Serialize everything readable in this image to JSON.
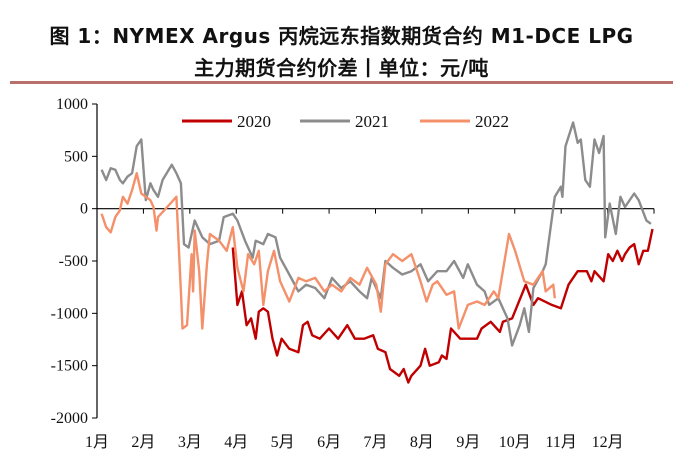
{
  "title": {
    "line1": "图 1：NYMEX Argus 丙烷远东指数期货合约 M1-DCE LPG",
    "line2": "主力期货合约价差丨单位：元/吨"
  },
  "chart_data": {
    "type": "line",
    "title": "图 1：NYMEX Argus 丙烷远东指数期货合约 M1-DCE LPG 主力期货合约价差丨单位：元/吨",
    "xlabel": "",
    "ylabel": "",
    "ylim": [
      -2000,
      1000
    ],
    "yticks": [
      "1000",
      "500",
      "0",
      "-500",
      "-1000",
      "-1500",
      "-2000"
    ],
    "xticks": [
      "1月",
      "2月",
      "3月",
      "4月",
      "5月",
      "6月",
      "7月",
      "8月",
      "9月",
      "10月",
      "11月",
      "12月"
    ],
    "grid": false,
    "legend": "top",
    "series": [
      {
        "name": "2020",
        "color": "#c00000",
        "points": [
          [
            "03-31",
            -371
          ],
          [
            "04-03",
            -919
          ],
          [
            "04-06",
            -790
          ],
          [
            "04-09",
            -1113
          ],
          [
            "04-12",
            -1048
          ],
          [
            "04-15",
            -1242
          ],
          [
            "04-17",
            -984
          ],
          [
            "04-20",
            -952
          ],
          [
            "04-23",
            -984
          ],
          [
            "04-26",
            -1242
          ],
          [
            "04-29",
            -1403
          ],
          [
            "05-02",
            -1242
          ],
          [
            "05-07",
            -1339
          ],
          [
            "05-13",
            -1371
          ],
          [
            "05-16",
            -1113
          ],
          [
            "05-19",
            -1081
          ],
          [
            "05-22",
            -1210
          ],
          [
            "05-27",
            -1242
          ],
          [
            "06-02",
            -1145
          ],
          [
            "06-08",
            -1242
          ],
          [
            "06-14",
            -1113
          ],
          [
            "06-19",
            -1242
          ],
          [
            "06-25",
            -1242
          ],
          [
            "07-01",
            -1210
          ],
          [
            "07-04",
            -1339
          ],
          [
            "07-09",
            -1371
          ],
          [
            "07-12",
            -1532
          ],
          [
            "07-18",
            -1597
          ],
          [
            "07-21",
            -1532
          ],
          [
            "07-24",
            -1661
          ],
          [
            "07-26",
            -1597
          ],
          [
            "08-01",
            -1500
          ],
          [
            "08-04",
            -1339
          ],
          [
            "08-07",
            -1500
          ],
          [
            "08-13",
            -1468
          ],
          [
            "08-15",
            -1403
          ],
          [
            "08-18",
            -1435
          ],
          [
            "08-21",
            -1145
          ],
          [
            "08-27",
            -1242
          ],
          [
            "09-02",
            -1242
          ],
          [
            "09-07",
            -1242
          ],
          [
            "09-10",
            -1145
          ],
          [
            "09-16",
            -1081
          ],
          [
            "09-22",
            -1177
          ],
          [
            "09-24",
            -1081
          ],
          [
            "09-30",
            -1048
          ],
          [
            "10-09",
            -726
          ],
          [
            "10-14",
            -919
          ],
          [
            "10-17",
            -855
          ],
          [
            "10-26",
            -919
          ],
          [
            "11-01",
            -952
          ],
          [
            "11-06",
            -726
          ],
          [
            "11-12",
            -597
          ],
          [
            "11-18",
            -597
          ],
          [
            "11-21",
            -694
          ],
          [
            "11-23",
            -597
          ],
          [
            "11-29",
            -694
          ],
          [
            "12-02",
            -435
          ],
          [
            "12-05",
            -500
          ],
          [
            "12-08",
            -403
          ],
          [
            "12-11",
            -500
          ],
          [
            "12-13",
            -435
          ],
          [
            "12-16",
            -371
          ],
          [
            "12-19",
            -339
          ],
          [
            "12-22",
            -532
          ],
          [
            "12-25",
            -403
          ],
          [
            "12-28",
            -403
          ],
          [
            "12-31",
            -194
          ]
        ]
      },
      {
        "name": "2021",
        "color": "#8c8c8c",
        "points": [
          [
            "01-04",
            371
          ],
          [
            "01-07",
            274
          ],
          [
            "01-10",
            387
          ],
          [
            "01-13",
            371
          ],
          [
            "01-16",
            274
          ],
          [
            "01-18",
            242
          ],
          [
            "01-21",
            306
          ],
          [
            "01-24",
            339
          ],
          [
            "01-27",
            597
          ],
          [
            "01-30",
            661
          ],
          [
            "02-02",
            81
          ],
          [
            "02-05",
            242
          ],
          [
            "02-07",
            177
          ],
          [
            "02-10",
            113
          ],
          [
            "02-13",
            274
          ],
          [
            "02-19",
            419
          ],
          [
            "02-22",
            339
          ],
          [
            "02-25",
            242
          ],
          [
            "02-27",
            -339
          ],
          [
            "03-02",
            -371
          ],
          [
            "03-06",
            -113
          ],
          [
            "03-11",
            -274
          ],
          [
            "03-16",
            -339
          ],
          [
            "03-22",
            -306
          ],
          [
            "03-25",
            -81
          ],
          [
            "03-31",
            -48
          ],
          [
            "04-03",
            -113
          ],
          [
            "04-08",
            -306
          ],
          [
            "04-13",
            -468
          ],
          [
            "04-15",
            -306
          ],
          [
            "04-20",
            -339
          ],
          [
            "04-23",
            -242
          ],
          [
            "04-28",
            -274
          ],
          [
            "05-01",
            -468
          ],
          [
            "05-07",
            -629
          ],
          [
            "05-13",
            -790
          ],
          [
            "05-18",
            -726
          ],
          [
            "05-24",
            -758
          ],
          [
            "05-30",
            -855
          ],
          [
            "06-04",
            -661
          ],
          [
            "06-10",
            -758
          ],
          [
            "06-16",
            -694
          ],
          [
            "06-22",
            -790
          ],
          [
            "06-27",
            -855
          ],
          [
            "06-30",
            -661
          ],
          [
            "07-06",
            -855
          ],
          [
            "07-09",
            -500
          ],
          [
            "07-14",
            -565
          ],
          [
            "07-20",
            -629
          ],
          [
            "07-26",
            -597
          ],
          [
            "08-01",
            -532
          ],
          [
            "08-06",
            -694
          ],
          [
            "08-12",
            -597
          ],
          [
            "08-18",
            -597
          ],
          [
            "08-23",
            -500
          ],
          [
            "08-29",
            -661
          ],
          [
            "09-01",
            -532
          ],
          [
            "09-07",
            -726
          ],
          [
            "09-12",
            -790
          ],
          [
            "09-15",
            -919
          ],
          [
            "09-21",
            -855
          ],
          [
            "09-27",
            -1048
          ],
          [
            "09-30",
            -1306
          ],
          [
            "10-05",
            -1113
          ],
          [
            "10-08",
            -952
          ],
          [
            "10-11",
            -1177
          ],
          [
            "10-14",
            -758
          ],
          [
            "10-20",
            -597
          ],
          [
            "10-22",
            -532
          ],
          [
            "10-25",
            -210
          ],
          [
            "10-28",
            113
          ],
          [
            "11-01",
            210
          ],
          [
            "11-02",
            113
          ],
          [
            "11-04",
            597
          ],
          [
            "11-09",
            823
          ],
          [
            "11-12",
            629
          ],
          [
            "11-14",
            661
          ],
          [
            "11-17",
            274
          ],
          [
            "11-20",
            210
          ],
          [
            "11-23",
            661
          ],
          [
            "11-26",
            532
          ],
          [
            "11-29",
            694
          ],
          [
            "11-30",
            -274
          ],
          [
            "12-03",
            48
          ],
          [
            "12-07",
            -242
          ],
          [
            "12-10",
            113
          ],
          [
            "12-13",
            16
          ],
          [
            "12-19",
            145
          ],
          [
            "12-22",
            81
          ],
          [
            "12-27",
            -113
          ],
          [
            "12-30",
            -145
          ]
        ]
      },
      {
        "name": "2022",
        "color": "#f4906a",
        "points": [
          [
            "01-04",
            -48
          ],
          [
            "01-07",
            -177
          ],
          [
            "01-10",
            -226
          ],
          [
            "01-13",
            -81
          ],
          [
            "01-16",
            -16
          ],
          [
            "01-18",
            113
          ],
          [
            "01-21",
            48
          ],
          [
            "01-24",
            177
          ],
          [
            "01-27",
            339
          ],
          [
            "01-30",
            145
          ],
          [
            "02-05",
            81
          ],
          [
            "02-07",
            16
          ],
          [
            "02-09",
            -210
          ],
          [
            "02-10",
            -81
          ],
          [
            "02-16",
            16
          ],
          [
            "02-22",
            113
          ],
          [
            "02-25",
            -790
          ],
          [
            "02-26",
            -1145
          ],
          [
            "03-01",
            -1113
          ],
          [
            "03-04",
            -435
          ],
          [
            "03-05",
            -790
          ],
          [
            "03-06",
            -210
          ],
          [
            "03-09",
            -597
          ],
          [
            "03-11",
            -1145
          ],
          [
            "03-14",
            -532
          ],
          [
            "03-16",
            -242
          ],
          [
            "03-22",
            -306
          ],
          [
            "03-27",
            -403
          ],
          [
            "03-31",
            -177
          ],
          [
            "04-03",
            -565
          ],
          [
            "04-07",
            -790
          ],
          [
            "04-10",
            -435
          ],
          [
            "04-14",
            -532
          ],
          [
            "04-17",
            -403
          ],
          [
            "04-20",
            -919
          ],
          [
            "04-23",
            -597
          ],
          [
            "04-27",
            -403
          ],
          [
            "05-01",
            -694
          ],
          [
            "05-07",
            -887
          ],
          [
            "05-13",
            -661
          ],
          [
            "05-18",
            -694
          ],
          [
            "05-24",
            -661
          ],
          [
            "05-30",
            -790
          ],
          [
            "06-04",
            -726
          ],
          [
            "06-10",
            -790
          ],
          [
            "06-16",
            -661
          ],
          [
            "06-22",
            -726
          ],
          [
            "06-27",
            -565
          ],
          [
            "07-03",
            -726
          ],
          [
            "07-06",
            -984
          ],
          [
            "07-09",
            -532
          ],
          [
            "07-14",
            -435
          ],
          [
            "07-20",
            -500
          ],
          [
            "07-26",
            -435
          ],
          [
            "08-01",
            -694
          ],
          [
            "08-05",
            -887
          ],
          [
            "08-09",
            -726
          ],
          [
            "08-12",
            -694
          ],
          [
            "08-18",
            -823
          ],
          [
            "08-23",
            -790
          ],
          [
            "08-26",
            -1145
          ],
          [
            "09-01",
            -919
          ],
          [
            "09-07",
            -887
          ],
          [
            "09-12",
            -919
          ],
          [
            "09-18",
            -790
          ],
          [
            "09-21",
            -855
          ],
          [
            "09-28",
            -242
          ],
          [
            "10-02",
            -403
          ],
          [
            "10-08",
            -694
          ],
          [
            "10-14",
            -726
          ],
          [
            "10-20",
            -597
          ],
          [
            "10-22",
            -790
          ],
          [
            "10-27",
            -726
          ],
          [
            "10-28",
            -855
          ]
        ]
      }
    ]
  }
}
